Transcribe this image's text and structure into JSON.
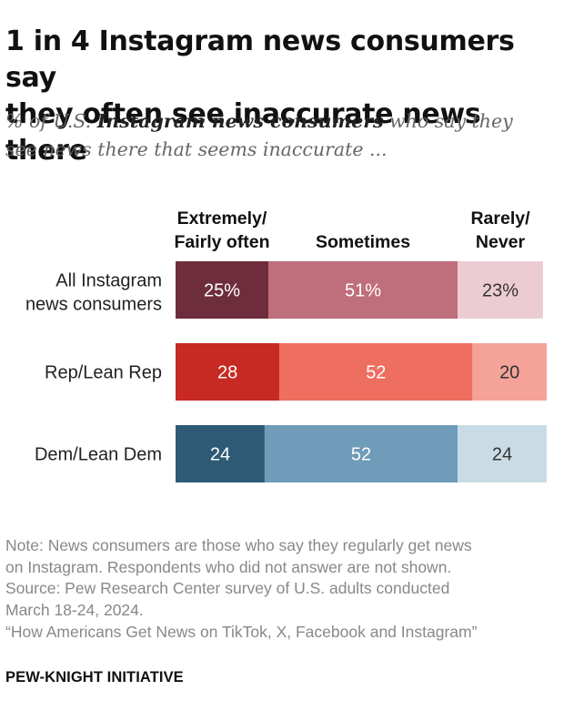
{
  "title_lines": [
    "1 in 4 Instagram news consumers say",
    "they often see inaccurate news there"
  ],
  "subtitle": {
    "prefix": "% of U.S. ",
    "bold": "Instagram news consumers",
    "suffix_line1": " who say they",
    "line2": "see news there that seems inaccurate ..."
  },
  "notes": {
    "line1": "Note: News consumers are those who say they regularly get news",
    "line2": "on Instagram. Respondents who did not answer are not shown.",
    "line3": "Source: Pew Research Center survey of U.S. adults conducted",
    "line4": "March 18-24, 2024.",
    "line5": "“How Americans Get News on TikTok, X, Facebook and Instagram”"
  },
  "footer": "PEW-KNIGHT INITIATIVE",
  "chart_data": {
    "type": "bar",
    "orientation": "horizontal",
    "stacked": true,
    "title": "1 in 4 Instagram news consumers say they often see inaccurate news there",
    "series": [
      {
        "name": "Extremely/ Fairly often",
        "header_lines": [
          "Extremely/",
          "Fairly often"
        ]
      },
      {
        "name": "Sometimes",
        "header_lines": [
          "Sometimes"
        ]
      },
      {
        "name": "Rarely/ Never",
        "header_lines": [
          "Rarely/",
          "Never"
        ]
      }
    ],
    "categories": [
      {
        "label_lines": [
          "All Instagram",
          "news consumers"
        ],
        "values": [
          25,
          51,
          23
        ],
        "labels": [
          "25%",
          "51%",
          "23%"
        ],
        "colors": [
          "#6e2d3d",
          "#bf6e7c",
          "#ecccd3"
        ]
      },
      {
        "label_lines": [
          "Rep/Lean Rep"
        ],
        "values": [
          28,
          52,
          20
        ],
        "labels": [
          "28",
          "52",
          "20"
        ],
        "colors": [
          "#c72a22",
          "#ee6e60",
          "#f5a398"
        ]
      },
      {
        "label_lines": [
          "Dem/Lean Dem"
        ],
        "values": [
          24,
          52,
          24
        ],
        "labels": [
          "24",
          "52",
          "24"
        ],
        "colors": [
          "#2e5a75",
          "#6f9cb8",
          "#c9dce6"
        ]
      }
    ],
    "xlim": [
      0,
      100
    ]
  }
}
